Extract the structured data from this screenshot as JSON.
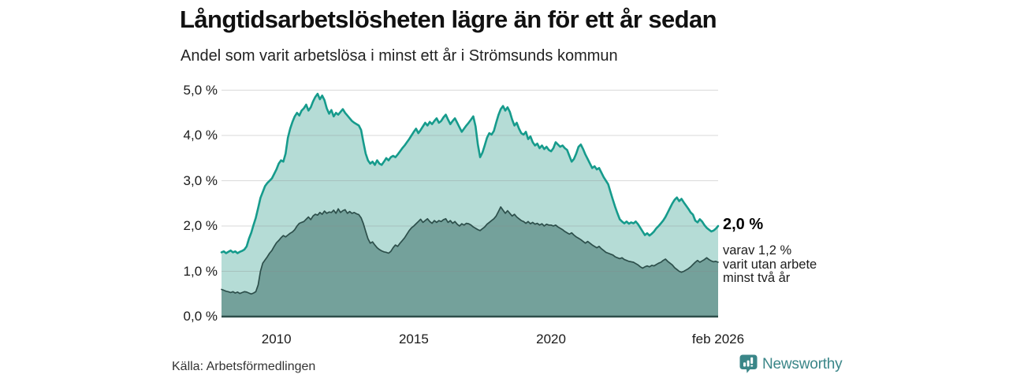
{
  "header": {
    "title": "Långtidsarbetslösheten lägre än för ett år sedan",
    "subtitle": "Andel som varit arbetslösa i minst ett år i Strömsunds kommun"
  },
  "chart_data": {
    "type": "area",
    "title": "Långtidsarbetslösheten lägre än för ett år sedan",
    "subtitle": "Andel som varit arbetslösa i minst ett år i Strömsunds kommun",
    "x_domain": [
      2008.0,
      2026.083
    ],
    "x_step": 0.08333,
    "x_ticks": [
      {
        "label": "2010",
        "year": 2010
      },
      {
        "label": "2015",
        "year": 2015
      },
      {
        "label": "2020",
        "year": 2020
      },
      {
        "label": "feb 2026",
        "year": 2026.083
      }
    ],
    "y_ticks": [
      {
        "label": "5,0 %",
        "value": 5
      },
      {
        "label": "4,0 %",
        "value": 4
      },
      {
        "label": "3,0 %",
        "value": 3
      },
      {
        "label": "2,0 %",
        "value": 2
      },
      {
        "label": "1,0 %",
        "value": 1
      },
      {
        "label": "0,0 %",
        "value": 0
      }
    ],
    "ylim": [
      0,
      5.2
    ],
    "grid": true,
    "legend": "none",
    "series": [
      {
        "name": "minst ett år",
        "stroke": "#169b8c",
        "fill": "#b5dcd6",
        "stroke_width": 2.6,
        "values": [
          1.42,
          1.44,
          1.4,
          1.43,
          1.46,
          1.42,
          1.44,
          1.4,
          1.43,
          1.45,
          1.48,
          1.55,
          1.72,
          1.85,
          2.02,
          2.18,
          2.4,
          2.62,
          2.75,
          2.88,
          2.95,
          3.0,
          3.05,
          3.15,
          3.25,
          3.38,
          3.45,
          3.42,
          3.6,
          3.95,
          4.15,
          4.3,
          4.42,
          4.5,
          4.44,
          4.55,
          4.6,
          4.68,
          4.55,
          4.62,
          4.75,
          4.85,
          4.92,
          4.8,
          4.88,
          4.78,
          4.6,
          4.48,
          4.56,
          4.42,
          4.5,
          4.46,
          4.52,
          4.58,
          4.5,
          4.44,
          4.38,
          4.32,
          4.28,
          4.25,
          4.22,
          4.12,
          3.85,
          3.6,
          3.45,
          3.38,
          3.42,
          3.35,
          3.45,
          3.38,
          3.35,
          3.42,
          3.5,
          3.45,
          3.52,
          3.55,
          3.52,
          3.58,
          3.65,
          3.72,
          3.78,
          3.85,
          3.92,
          4.0,
          4.08,
          4.15,
          4.05,
          4.12,
          4.2,
          4.28,
          4.22,
          4.3,
          4.25,
          4.32,
          4.38,
          4.28,
          4.32,
          4.4,
          4.46,
          4.35,
          4.25,
          4.32,
          4.38,
          4.28,
          4.18,
          4.08,
          4.15,
          4.22,
          4.28,
          4.35,
          4.42,
          4.2,
          3.8,
          3.52,
          3.62,
          3.78,
          3.95,
          4.05,
          4.02,
          4.1,
          4.28,
          4.45,
          4.58,
          4.65,
          4.55,
          4.62,
          4.52,
          4.35,
          4.22,
          4.28,
          4.15,
          4.05,
          4.02,
          4.08,
          3.92,
          3.98,
          3.85,
          3.78,
          3.82,
          3.72,
          3.78,
          3.7,
          3.75,
          3.68,
          3.65,
          3.72,
          3.85,
          3.8,
          3.75,
          3.78,
          3.72,
          3.68,
          3.55,
          3.42,
          3.48,
          3.6,
          3.75,
          3.8,
          3.7,
          3.58,
          3.48,
          3.38,
          3.28,
          3.32,
          3.25,
          3.28,
          3.18,
          3.08,
          3.0,
          2.92,
          2.75,
          2.58,
          2.42,
          2.28,
          2.15,
          2.1,
          2.06,
          2.1,
          2.05,
          2.08,
          2.06,
          2.1,
          2.04,
          1.96,
          1.88,
          1.8,
          1.84,
          1.79,
          1.83,
          1.88,
          1.95,
          2.0,
          2.06,
          2.12,
          2.2,
          2.3,
          2.4,
          2.5,
          2.58,
          2.63,
          2.55,
          2.6,
          2.52,
          2.45,
          2.38,
          2.3,
          2.25,
          2.12,
          2.08,
          2.15,
          2.1,
          2.02,
          1.96,
          1.92,
          1.88,
          1.9,
          1.94,
          2.0
        ]
      },
      {
        "name": "minst två år",
        "stroke": "#2d4f4b",
        "fill": "#74a19b",
        "stroke_width": 1.7,
        "values": [
          0.6,
          0.58,
          0.56,
          0.55,
          0.53,
          0.55,
          0.52,
          0.54,
          0.51,
          0.53,
          0.55,
          0.54,
          0.52,
          0.5,
          0.52,
          0.55,
          0.7,
          1.0,
          1.18,
          1.25,
          1.32,
          1.4,
          1.46,
          1.55,
          1.63,
          1.68,
          1.74,
          1.79,
          1.76,
          1.8,
          1.84,
          1.87,
          1.92,
          2.0,
          2.06,
          2.08,
          2.1,
          2.15,
          2.2,
          2.14,
          2.22,
          2.26,
          2.24,
          2.3,
          2.26,
          2.33,
          2.28,
          2.31,
          2.3,
          2.35,
          2.28,
          2.38,
          2.3,
          2.34,
          2.36,
          2.28,
          2.32,
          2.28,
          2.3,
          2.27,
          2.25,
          2.18,
          2.05,
          1.88,
          1.72,
          1.62,
          1.65,
          1.58,
          1.52,
          1.48,
          1.45,
          1.43,
          1.42,
          1.4,
          1.44,
          1.52,
          1.58,
          1.55,
          1.62,
          1.68,
          1.74,
          1.82,
          1.9,
          1.96,
          2.0,
          2.05,
          2.1,
          2.15,
          2.08,
          2.12,
          2.16,
          2.1,
          2.06,
          2.12,
          2.08,
          2.12,
          2.1,
          2.14,
          2.16,
          2.08,
          2.12,
          2.06,
          2.1,
          2.04,
          2.0,
          2.05,
          2.02,
          2.06,
          2.05,
          2.02,
          1.98,
          1.95,
          1.92,
          1.9,
          1.94,
          1.98,
          2.04,
          2.08,
          2.12,
          2.16,
          2.22,
          2.32,
          2.42,
          2.35,
          2.28,
          2.34,
          2.28,
          2.22,
          2.26,
          2.2,
          2.16,
          2.12,
          2.1,
          2.06,
          2.1,
          2.05,
          2.08,
          2.04,
          2.06,
          2.02,
          2.05,
          2.0,
          2.04,
          2.02,
          2.02,
          2.0,
          2.02,
          1.98,
          1.95,
          1.92,
          1.88,
          1.85,
          1.82,
          1.85,
          1.8,
          1.76,
          1.73,
          1.7,
          1.66,
          1.62,
          1.66,
          1.62,
          1.58,
          1.55,
          1.52,
          1.55,
          1.5,
          1.46,
          1.42,
          1.4,
          1.38,
          1.36,
          1.32,
          1.3,
          1.28,
          1.3,
          1.26,
          1.24,
          1.22,
          1.21,
          1.2,
          1.17,
          1.14,
          1.1,
          1.07,
          1.1,
          1.12,
          1.1,
          1.13,
          1.12,
          1.15,
          1.18,
          1.2,
          1.24,
          1.27,
          1.22,
          1.18,
          1.14,
          1.08,
          1.04,
          1.0,
          0.98,
          1.0,
          1.03,
          1.06,
          1.1,
          1.15,
          1.2,
          1.24,
          1.2,
          1.23,
          1.26,
          1.3,
          1.26,
          1.23,
          1.21,
          1.22,
          1.2
        ]
      }
    ],
    "annotations": {
      "end_value_label": "2,0 %",
      "secondary_lines": [
        "varav 1,2 %",
        "varit utan arbete",
        "minst två år"
      ]
    }
  },
  "footer": {
    "source": "Källa: Arbetsförmedlingen",
    "brand": "Newsworthy"
  },
  "colors": {
    "background": "#ffffff",
    "line_teal": "#169b8c",
    "fill_light": "#b5dcd6",
    "fill_dark": "#74a19b",
    "line_dark": "#2d4f4b",
    "grid": "#8a8a8a",
    "axis": "#2e4e4a",
    "brand_teal": "#3a8688",
    "text": "#1a1a1a"
  }
}
